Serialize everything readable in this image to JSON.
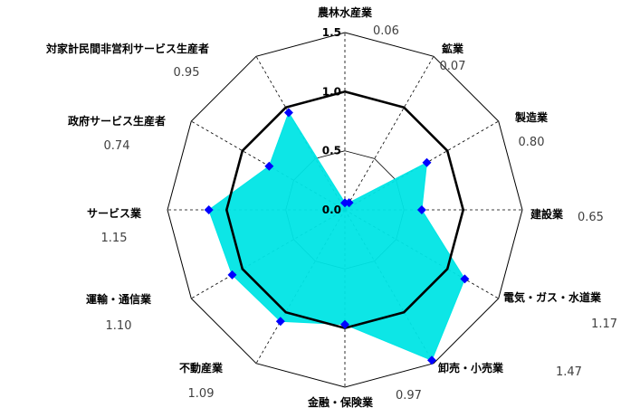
{
  "chart_data": {
    "type": "radar",
    "categories": [
      "農林水産業",
      "鉱業",
      "製造業",
      "建設業",
      "電気・ガス・水道業",
      "卸売・小売業",
      "金融・保険業",
      "不動産業",
      "運輸・通信業",
      "サービス業",
      "政府サービス生産者",
      "対家計民間非営利サービス生産者"
    ],
    "series": [
      {
        "values": [
          0.06,
          0.07,
          0.8,
          0.65,
          1.17,
          1.47,
          0.97,
          1.09,
          1.1,
          1.15,
          0.74,
          0.95
        ]
      }
    ],
    "value_labels": [
      "0.06",
      "0.07",
      "0.80",
      "0.65",
      "1.17",
      "1.47",
      "0.97",
      "1.09",
      "1.10",
      "1.15",
      "0.74",
      "0.95"
    ],
    "ticks": [
      "0.0",
      "0.5",
      "1.0",
      "1.5"
    ],
    "rmax": 1.5,
    "reference_line": 1.0,
    "fill_color": "#00e5e5",
    "marker_color": "#0000ff",
    "reference_color": "#000000",
    "grid": true
  }
}
